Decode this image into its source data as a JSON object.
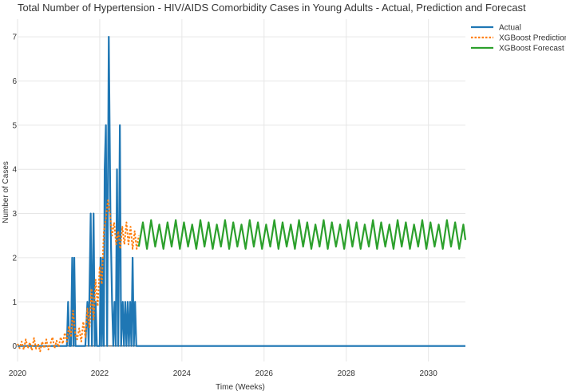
{
  "chart_data": {
    "type": "line",
    "title": "Total Number of Hypertension - HIV/AIDS Comorbidity Cases in Young Adults - Actual, Prediction and Forecast",
    "xlabel": "Time (Weeks)",
    "ylabel": "Number of Cases",
    "xlim": [
      2020.0,
      2030.9
    ],
    "ylim": [
      -0.35,
      7.4
    ],
    "x_ticks": [
      2020,
      2022,
      2024,
      2026,
      2028,
      2030
    ],
    "y_ticks": [
      0,
      1,
      2,
      3,
      4,
      5,
      6,
      7
    ],
    "grid": true,
    "legend_position": "top-right",
    "series": [
      {
        "name": "Actual",
        "color": "#1f77b4",
        "style": "solid",
        "points": [
          [
            2020.0,
            0
          ],
          [
            2021.2,
            0
          ],
          [
            2021.23,
            1
          ],
          [
            2021.26,
            0
          ],
          [
            2021.3,
            0
          ],
          [
            2021.33,
            2
          ],
          [
            2021.36,
            0
          ],
          [
            2021.38,
            2
          ],
          [
            2021.41,
            0
          ],
          [
            2021.65,
            0
          ],
          [
            2021.7,
            1
          ],
          [
            2021.73,
            0
          ],
          [
            2021.78,
            3
          ],
          [
            2021.81,
            0
          ],
          [
            2021.85,
            3
          ],
          [
            2021.88,
            0
          ],
          [
            2021.9,
            1
          ],
          [
            2021.93,
            0
          ],
          [
            2022.0,
            0
          ],
          [
            2022.02,
            2
          ],
          [
            2022.05,
            0
          ],
          [
            2022.07,
            2
          ],
          [
            2022.1,
            0
          ],
          [
            2022.12,
            4
          ],
          [
            2022.15,
            5
          ],
          [
            2022.18,
            0
          ],
          [
            2022.22,
            7
          ],
          [
            2022.26,
            3
          ],
          [
            2022.3,
            1
          ],
          [
            2022.33,
            0
          ],
          [
            2022.36,
            1
          ],
          [
            2022.39,
            0
          ],
          [
            2022.42,
            4
          ],
          [
            2022.45,
            0
          ],
          [
            2022.49,
            5
          ],
          [
            2022.52,
            0
          ],
          [
            2022.56,
            1
          ],
          [
            2022.59,
            0
          ],
          [
            2022.62,
            1
          ],
          [
            2022.65,
            0
          ],
          [
            2022.68,
            1
          ],
          [
            2022.71,
            0
          ],
          [
            2022.74,
            1
          ],
          [
            2022.77,
            0
          ],
          [
            2022.8,
            2
          ],
          [
            2022.83,
            0
          ],
          [
            2022.86,
            1
          ],
          [
            2022.89,
            0
          ],
          [
            2030.9,
            0
          ]
        ]
      },
      {
        "name": "XGBoost Prediction",
        "color": "#ff7f0e",
        "style": "dotted",
        "points": [
          [
            2020.0,
            0.05
          ],
          [
            2020.05,
            -0.05
          ],
          [
            2020.1,
            0.1
          ],
          [
            2020.15,
            -0.08
          ],
          [
            2020.2,
            0.15
          ],
          [
            2020.25,
            -0.05
          ],
          [
            2020.3,
            0.08
          ],
          [
            2020.35,
            -0.1
          ],
          [
            2020.4,
            0.18
          ],
          [
            2020.45,
            -0.06
          ],
          [
            2020.5,
            0.05
          ],
          [
            2020.55,
            -0.12
          ],
          [
            2020.6,
            0.1
          ],
          [
            2020.65,
            -0.05
          ],
          [
            2020.7,
            0.15
          ],
          [
            2020.75,
            -0.08
          ],
          [
            2020.8,
            0.05
          ],
          [
            2020.85,
            0.2
          ],
          [
            2020.9,
            -0.05
          ],
          [
            2020.95,
            0.12
          ],
          [
            2021.0,
            -0.02
          ],
          [
            2021.05,
            0.2
          ],
          [
            2021.1,
            0.05
          ],
          [
            2021.15,
            0.3
          ],
          [
            2021.2,
            0.1
          ],
          [
            2021.25,
            0.45
          ],
          [
            2021.3,
            0.2
          ],
          [
            2021.35,
            0.8
          ],
          [
            2021.4,
            0.3
          ],
          [
            2021.45,
            0.15
          ],
          [
            2021.5,
            0.4
          ],
          [
            2021.55,
            0.1
          ],
          [
            2021.6,
            0.55
          ],
          [
            2021.65,
            0.2
          ],
          [
            2021.7,
            0.85
          ],
          [
            2021.75,
            0.4
          ],
          [
            2021.8,
            1.3
          ],
          [
            2021.85,
            0.6
          ],
          [
            2021.9,
            1.5
          ],
          [
            2021.95,
            0.9
          ],
          [
            2022.0,
            1.8
          ],
          [
            2022.05,
            1.4
          ],
          [
            2022.1,
            2.6
          ],
          [
            2022.15,
            2.9
          ],
          [
            2022.2,
            3.3
          ],
          [
            2022.25,
            3.0
          ],
          [
            2022.3,
            2.5
          ],
          [
            2022.35,
            2.8
          ],
          [
            2022.4,
            2.3
          ],
          [
            2022.45,
            2.6
          ],
          [
            2022.5,
            2.2
          ],
          [
            2022.55,
            2.7
          ],
          [
            2022.6,
            2.3
          ],
          [
            2022.65,
            2.8
          ],
          [
            2022.7,
            2.3
          ],
          [
            2022.75,
            2.7
          ],
          [
            2022.8,
            2.2
          ],
          [
            2022.85,
            2.6
          ],
          [
            2022.9,
            2.2
          ],
          [
            2022.95,
            2.5
          ]
        ]
      },
      {
        "name": "XGBoost Forecast",
        "color": "#2ca02c",
        "style": "solid",
        "points": [
          [
            2022.95,
            2.25
          ],
          [
            2023.05,
            2.8
          ],
          [
            2023.15,
            2.2
          ],
          [
            2023.25,
            2.85
          ],
          [
            2023.35,
            2.25
          ],
          [
            2023.45,
            2.75
          ],
          [
            2023.55,
            2.2
          ],
          [
            2023.65,
            2.8
          ],
          [
            2023.75,
            2.25
          ],
          [
            2023.85,
            2.85
          ],
          [
            2023.95,
            2.2
          ],
          [
            2024.05,
            2.8
          ],
          [
            2024.15,
            2.25
          ],
          [
            2024.25,
            2.75
          ],
          [
            2024.35,
            2.2
          ],
          [
            2024.45,
            2.85
          ],
          [
            2024.55,
            2.25
          ],
          [
            2024.65,
            2.8
          ],
          [
            2024.75,
            2.2
          ],
          [
            2024.85,
            2.75
          ],
          [
            2024.95,
            2.25
          ],
          [
            2025.05,
            2.85
          ],
          [
            2025.15,
            2.2
          ],
          [
            2025.25,
            2.8
          ],
          [
            2025.35,
            2.25
          ],
          [
            2025.45,
            2.75
          ],
          [
            2025.55,
            2.2
          ],
          [
            2025.65,
            2.85
          ],
          [
            2025.75,
            2.25
          ],
          [
            2025.85,
            2.8
          ],
          [
            2025.95,
            2.2
          ],
          [
            2026.05,
            2.75
          ],
          [
            2026.15,
            2.25
          ],
          [
            2026.25,
            2.85
          ],
          [
            2026.35,
            2.2
          ],
          [
            2026.45,
            2.8
          ],
          [
            2026.55,
            2.25
          ],
          [
            2026.65,
            2.75
          ],
          [
            2026.75,
            2.2
          ],
          [
            2026.85,
            2.85
          ],
          [
            2026.95,
            2.25
          ],
          [
            2027.05,
            2.8
          ],
          [
            2027.15,
            2.2
          ],
          [
            2027.25,
            2.75
          ],
          [
            2027.35,
            2.25
          ],
          [
            2027.45,
            2.85
          ],
          [
            2027.55,
            2.2
          ],
          [
            2027.65,
            2.8
          ],
          [
            2027.75,
            2.25
          ],
          [
            2027.85,
            2.75
          ],
          [
            2027.95,
            2.2
          ],
          [
            2028.05,
            2.85
          ],
          [
            2028.15,
            2.25
          ],
          [
            2028.25,
            2.8
          ],
          [
            2028.35,
            2.2
          ],
          [
            2028.45,
            2.75
          ],
          [
            2028.55,
            2.25
          ],
          [
            2028.65,
            2.85
          ],
          [
            2028.75,
            2.2
          ],
          [
            2028.85,
            2.8
          ],
          [
            2028.95,
            2.25
          ],
          [
            2029.05,
            2.75
          ],
          [
            2029.15,
            2.2
          ],
          [
            2029.25,
            2.85
          ],
          [
            2029.35,
            2.25
          ],
          [
            2029.45,
            2.8
          ],
          [
            2029.55,
            2.2
          ],
          [
            2029.65,
            2.75
          ],
          [
            2029.75,
            2.25
          ],
          [
            2029.85,
            2.85
          ],
          [
            2029.95,
            2.2
          ],
          [
            2030.05,
            2.8
          ],
          [
            2030.15,
            2.25
          ],
          [
            2030.25,
            2.75
          ],
          [
            2030.35,
            2.2
          ],
          [
            2030.45,
            2.85
          ],
          [
            2030.55,
            2.25
          ],
          [
            2030.65,
            2.8
          ],
          [
            2030.75,
            2.2
          ],
          [
            2030.85,
            2.75
          ],
          [
            2030.9,
            2.4
          ]
        ]
      }
    ]
  }
}
